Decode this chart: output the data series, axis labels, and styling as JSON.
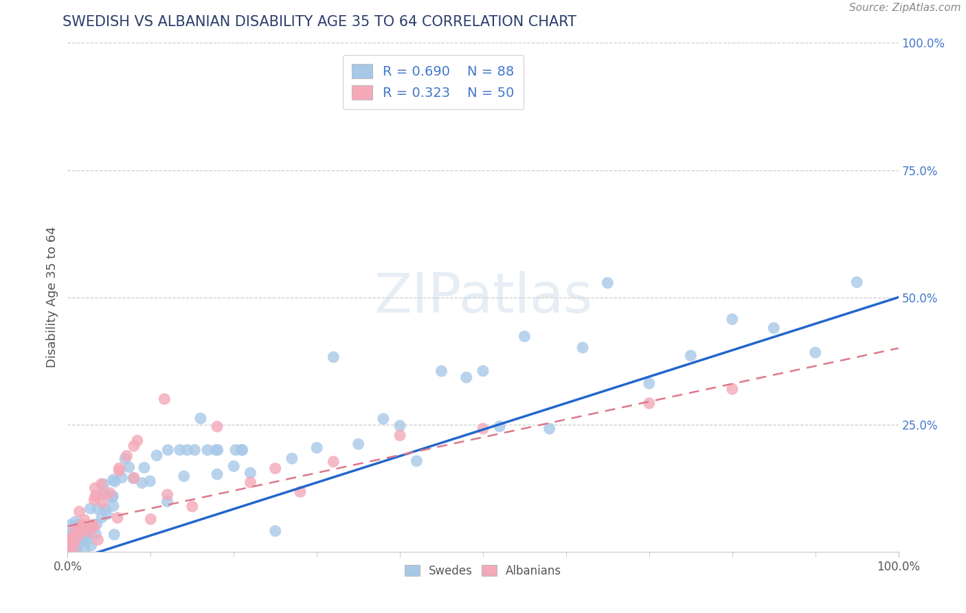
{
  "title": "SWEDISH VS ALBANIAN DISABILITY AGE 35 TO 64 CORRELATION CHART",
  "source": "Source: ZipAtlas.com",
  "ylabel": "Disability Age 35 to 64",
  "xlim": [
    0.0,
    1.0
  ],
  "ylim": [
    0.0,
    1.0
  ],
  "background_color": "#ffffff",
  "swedes_color": "#a8c8e8",
  "albanians_color": "#f4a8b8",
  "swede_line_color": "#2266cc",
  "albanian_line_color": "#dd7788",
  "title_color": "#2c3e6b",
  "ytick_color": "#4477cc",
  "xtick_color": "#555555"
}
